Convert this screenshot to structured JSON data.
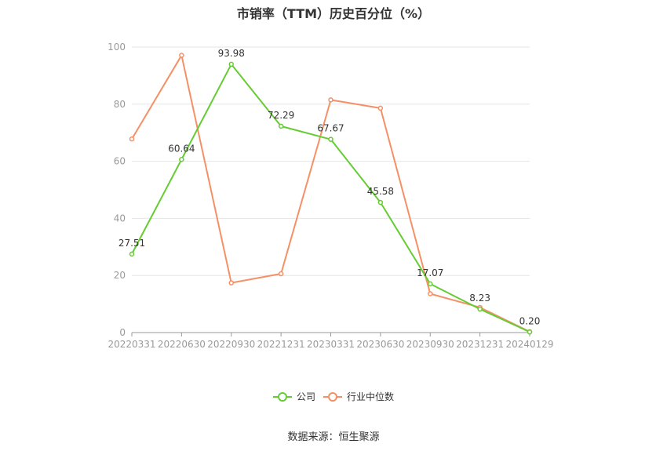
{
  "chart_data": {
    "type": "line",
    "title": "市销率（TTM）历史百分位（%）",
    "x": [
      "20220331",
      "20220630",
      "20220930",
      "20221231",
      "20230331",
      "20230630",
      "20230930",
      "20231231",
      "20240129"
    ],
    "ylim": [
      0,
      100
    ],
    "yticks": [
      0,
      20,
      40,
      60,
      80,
      100
    ],
    "grid": true,
    "legend_position": "bottom-center",
    "series": [
      {
        "name": "公司",
        "color": "#66cc33",
        "values": [
          27.51,
          60.64,
          93.98,
          72.29,
          67.67,
          45.58,
          17.07,
          8.23,
          0.2
        ],
        "labels": [
          "27.51",
          "60.64",
          "93.98",
          "72.29",
          "67.67",
          "45.58",
          "17.07",
          "8.23",
          "0.20"
        ]
      },
      {
        "name": "行业中位数",
        "color": "#f59066",
        "values": [
          67.8,
          97.1,
          17.4,
          20.6,
          81.5,
          78.6,
          13.6,
          8.8,
          0.3
        ]
      }
    ]
  },
  "source_text": "数据来源：恒生聚源"
}
